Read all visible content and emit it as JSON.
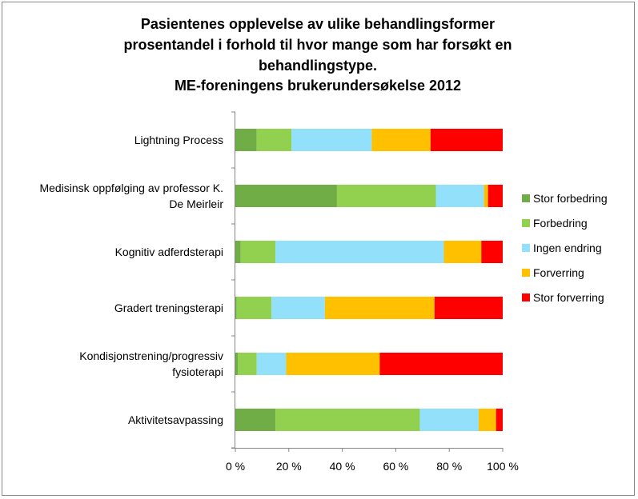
{
  "chart_data": {
    "type": "bar",
    "orientation": "horizontal",
    "stacked": "percent",
    "title_lines": [
      "Pasientenes opplevelse av ulike behandlingsformer",
      "prosentandel i forhold til hvor mange som har forsøkt en",
      "behandlingstype.",
      "ME-foreningens brukerundersøkelse 2012"
    ],
    "categories": [
      [
        "Lightning Process"
      ],
      [
        "Medisinsk oppfølging av professor K.",
        "De Meirleir"
      ],
      [
        "Kognitiv adferdsterapi"
      ],
      [
        "Gradert treningsterapi"
      ],
      [
        "Kondisjonstrening/progressiv",
        "fysioterapi"
      ],
      [
        "Aktivitetsavpassing"
      ]
    ],
    "series": [
      {
        "name": "Stor forbedring",
        "color": "#70ad47",
        "values": [
          8,
          38,
          2,
          0.5,
          1,
          15
        ]
      },
      {
        "name": "Forbedring",
        "color": "#92d050",
        "values": [
          13,
          37,
          13,
          13,
          7,
          54
        ]
      },
      {
        "name": "Ingen endring",
        "color": "#92e0fa",
        "values": [
          30,
          18,
          63,
          20,
          11,
          22
        ]
      },
      {
        "name": "Forverring",
        "color": "#ffc000",
        "values": [
          22,
          1.5,
          14,
          41,
          35,
          6.5
        ]
      },
      {
        "name": "Stor forverring",
        "color": "#ff0000",
        "values": [
          27,
          5.5,
          8,
          25.5,
          46,
          2.5
        ]
      }
    ],
    "x_ticks": [
      "0 %",
      "20 %",
      "40 %",
      "60 %",
      "80 %",
      "100 %"
    ],
    "xlim": [
      0,
      100
    ],
    "grid": false,
    "legend_position": "right"
  }
}
